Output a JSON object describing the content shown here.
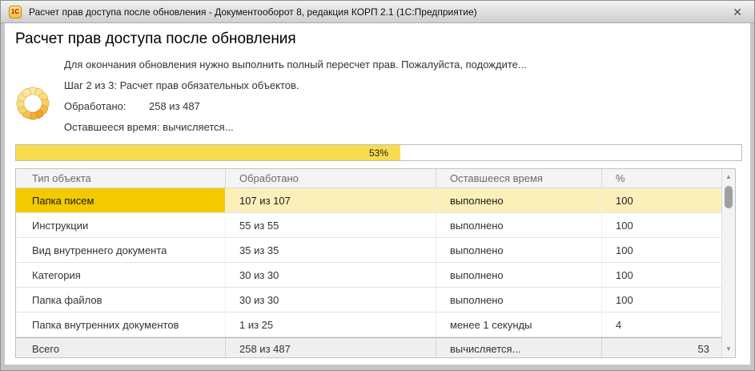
{
  "window": {
    "title": "Расчет прав доступа после обновления - Документооборот 8, редакция КОРП 2.1  (1С:Предприятие)",
    "app_icon_text": "1С",
    "close_glyph": "✕"
  },
  "header": {
    "title": "Расчет прав доступа после обновления"
  },
  "status": {
    "message": "Для окончания обновления нужно выполнить полный пересчет прав. Пожалуйста, подождите...",
    "step": "Шаг 2 из 3: Расчет прав обязательных объектов.",
    "processed_label": "Обработано:",
    "processed_value": "258 из 487",
    "remaining": "Оставшееся время: вычисляется..."
  },
  "progress": {
    "percent": 53,
    "label": "53%",
    "fill_color": "#f8dc4e"
  },
  "table": {
    "columns": [
      "Тип объекта",
      "Обработано",
      "Оставшееся время",
      "%"
    ],
    "rows": [
      {
        "type": "Папка писем",
        "processed": "107 из 107",
        "remaining": "выполнено",
        "percent": "100",
        "selected": true
      },
      {
        "type": "Инструкции",
        "processed": "55 из 55",
        "remaining": "выполнено",
        "percent": "100",
        "selected": false
      },
      {
        "type": "Вид внутреннего документа",
        "processed": "35 из 35",
        "remaining": "выполнено",
        "percent": "100",
        "selected": false
      },
      {
        "type": "Категория",
        "processed": "30 из 30",
        "remaining": "выполнено",
        "percent": "100",
        "selected": false
      },
      {
        "type": "Папка файлов",
        "processed": "30 из 30",
        "remaining": "выполнено",
        "percent": "100",
        "selected": false
      },
      {
        "type": "Папка внутренних документов",
        "processed": "1 из 25",
        "remaining": "менее 1 секунды",
        "percent": "4",
        "selected": false
      }
    ],
    "footer": {
      "type": "Всего",
      "processed": "258 из 487",
      "remaining": "вычисляется...",
      "percent": "53"
    },
    "scrollbar": {
      "up_glyph": "▲",
      "down_glyph": "▼"
    }
  },
  "colors": {
    "selection_gold": "#f3ca00",
    "selection_light": "#fbf0ba",
    "progress_yellow": "#f8dc4e",
    "spinner_orange": "#eca32f"
  }
}
